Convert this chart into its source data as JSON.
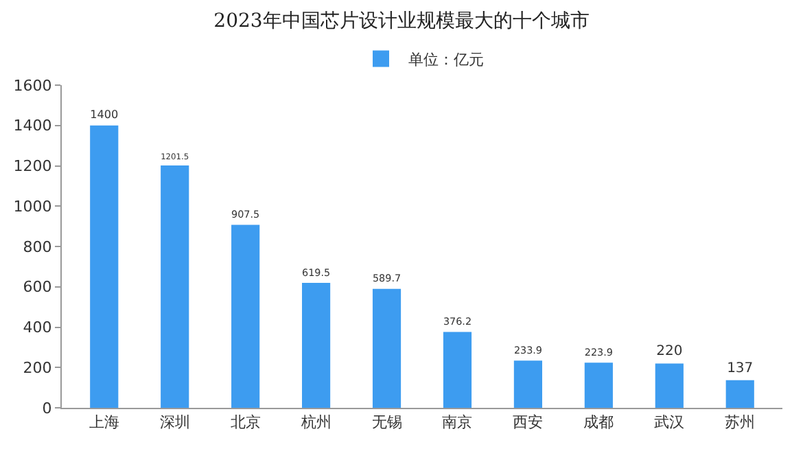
{
  "chart_data": {
    "type": "bar",
    "title": "2023年中国芯片设计业规模最大的十个城市",
    "categories": [
      "上海",
      "深圳",
      "北京",
      "杭州",
      "无锡",
      "南京",
      "西安",
      "成都",
      "武汉",
      "苏州"
    ],
    "series": [
      {
        "name": "单位：亿元",
        "color": "#3d9cf0",
        "values": [
          1400,
          1201.5,
          907.5,
          619.5,
          589.7,
          376.2,
          233.9,
          223.9,
          220,
          137
        ]
      }
    ],
    "ylim": [
      0,
      1600
    ],
    "yticks": [
      0,
      200,
      400,
      600,
      800,
      1000,
      1200,
      1400,
      1600
    ],
    "grid": false,
    "legend": "top",
    "data_labels": true
  }
}
